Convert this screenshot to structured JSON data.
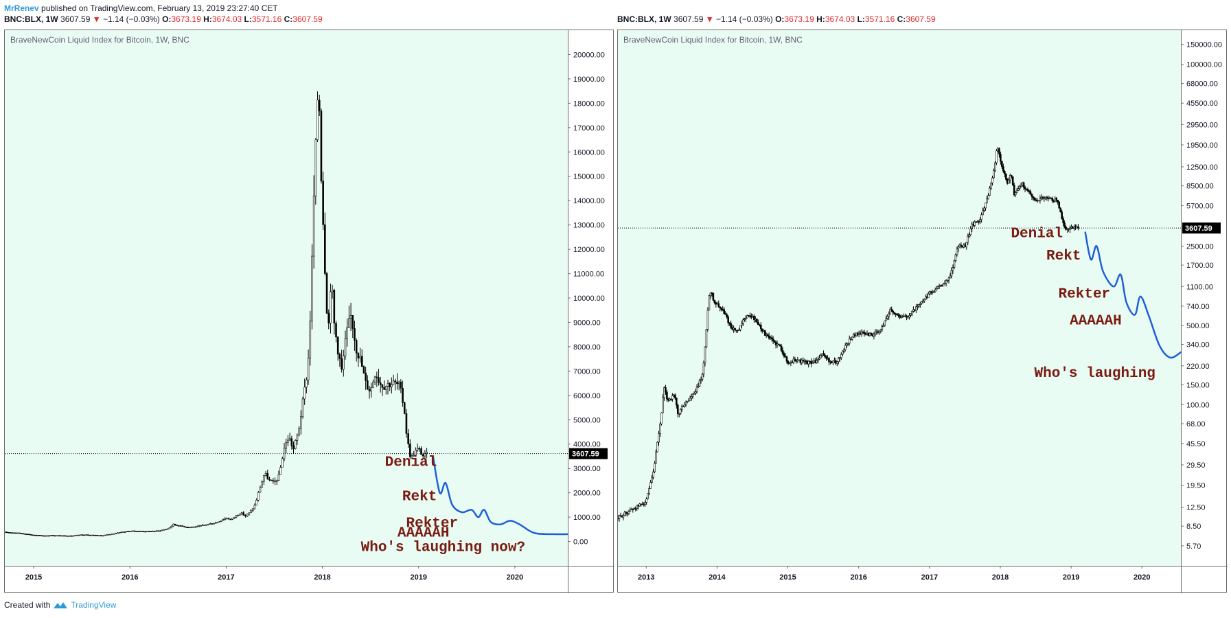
{
  "header": {
    "author": "MrRenev",
    "published": "published on TradingView.com, February 13, 2019 23:27:40 CET"
  },
  "ticker": {
    "symbol": "BNC:BLX, 1W",
    "price": "3607.59",
    "change": "−1.14 (−0.03%)",
    "o_label": "O:",
    "o_value": "3673.19",
    "h_label": "H:",
    "h_value": "3674.03",
    "l_label": "L:",
    "l_value": "3571.16",
    "c_label": "C:",
    "c_value": "3607.59"
  },
  "footer": {
    "created_with": "Created with",
    "brand": "TradingView"
  },
  "colors": {
    "plot_bg": "#e9fcf4",
    "candle": "#000000",
    "projection": "#1f5fd6",
    "annotation": "#7a1a10",
    "price_tag_bg": "#000000"
  },
  "chart_data": [
    {
      "type": "candlestick",
      "title": "BraveNewCoin Liquid Index for Bitcoin, 1W, BNC",
      "scale": "linear",
      "ylim": [
        -1000,
        21000
      ],
      "xlim": [
        2014.7,
        2020.55
      ],
      "y_ticks": [
        0,
        1000,
        2000,
        3000,
        4000,
        5000,
        6000,
        7000,
        8000,
        9000,
        10000,
        11000,
        12000,
        13000,
        14000,
        15000,
        16000,
        17000,
        18000,
        19000,
        20000
      ],
      "y_tick_labels": [
        "0.00",
        "1000.00",
        "2000.00",
        "3000.00",
        "4000.00",
        "5000.00",
        "6000.00",
        "7000.00",
        "8000.00",
        "9000.00",
        "10000.00",
        "11000.00",
        "12000.00",
        "13000.00",
        "14000.00",
        "15000.00",
        "16000.00",
        "17000.00",
        "18000.00",
        "19000.00",
        "20000.00"
      ],
      "x_ticks": [
        2015,
        2016,
        2017,
        2018,
        2019,
        2020
      ],
      "x_tick_labels": [
        "2015",
        "2016",
        "2017",
        "2018",
        "2019",
        "2020"
      ],
      "last_price": 3607.59,
      "last_price_label": "3607.59",
      "price_series": [
        [
          2014.7,
          380
        ],
        [
          2014.8,
          360
        ],
        [
          2014.9,
          320
        ],
        [
          2015.0,
          260
        ],
        [
          2015.1,
          240
        ],
        [
          2015.2,
          250
        ],
        [
          2015.3,
          235
        ],
        [
          2015.4,
          240
        ],
        [
          2015.5,
          280
        ],
        [
          2015.6,
          260
        ],
        [
          2015.7,
          240
        ],
        [
          2015.8,
          300
        ],
        [
          2015.9,
          380
        ],
        [
          2016.0,
          430
        ],
        [
          2016.1,
          420
        ],
        [
          2016.2,
          415
        ],
        [
          2016.3,
          440
        ],
        [
          2016.4,
          530
        ],
        [
          2016.45,
          700
        ],
        [
          2016.5,
          650
        ],
        [
          2016.6,
          590
        ],
        [
          2016.7,
          610
        ],
        [
          2016.8,
          700
        ],
        [
          2016.9,
          780
        ],
        [
          2017.0,
          970
        ],
        [
          2017.05,
          900
        ],
        [
          2017.1,
          1050
        ],
        [
          2017.15,
          1180
        ],
        [
          2017.2,
          1050
        ],
        [
          2017.25,
          1200
        ],
        [
          2017.3,
          1500
        ],
        [
          2017.35,
          2200
        ],
        [
          2017.4,
          2800
        ],
        [
          2017.45,
          2500
        ],
        [
          2017.5,
          2400
        ],
        [
          2017.55,
          2700
        ],
        [
          2017.6,
          3800
        ],
        [
          2017.65,
          4300
        ],
        [
          2017.7,
          3800
        ],
        [
          2017.75,
          4500
        ],
        [
          2017.8,
          5800
        ],
        [
          2017.85,
          7200
        ],
        [
          2017.88,
          9800
        ],
        [
          2017.91,
          14000
        ],
        [
          2017.94,
          17000
        ],
        [
          2017.96,
          19500
        ],
        [
          2017.98,
          16000
        ],
        [
          2018.0,
          14000
        ],
        [
          2018.03,
          11000
        ],
        [
          2018.06,
          8500
        ],
        [
          2018.09,
          11000
        ],
        [
          2018.12,
          9000
        ],
        [
          2018.15,
          8200
        ],
        [
          2018.2,
          7000
        ],
        [
          2018.25,
          8500
        ],
        [
          2018.3,
          9300
        ],
        [
          2018.35,
          8000
        ],
        [
          2018.4,
          7400
        ],
        [
          2018.45,
          6500
        ],
        [
          2018.5,
          6200
        ],
        [
          2018.55,
          7000
        ],
        [
          2018.6,
          6500
        ],
        [
          2018.65,
          6400
        ],
        [
          2018.7,
          6500
        ],
        [
          2018.75,
          6500
        ],
        [
          2018.8,
          6400
        ],
        [
          2018.85,
          5500
        ],
        [
          2018.88,
          4200
        ],
        [
          2018.92,
          3400
        ],
        [
          2018.96,
          3700
        ],
        [
          2019.0,
          3800
        ],
        [
          2019.05,
          3500
        ],
        [
          2019.1,
          3600
        ]
      ],
      "projection": [
        [
          2019.15,
          3500
        ],
        [
          2019.22,
          2000
        ],
        [
          2019.28,
          2400
        ],
        [
          2019.35,
          1500
        ],
        [
          2019.45,
          1200
        ],
        [
          2019.55,
          1300
        ],
        [
          2019.62,
          1000
        ],
        [
          2019.68,
          1300
        ],
        [
          2019.75,
          800
        ],
        [
          2019.85,
          700
        ],
        [
          2019.95,
          850
        ],
        [
          2020.05,
          700
        ],
        [
          2020.2,
          350
        ],
        [
          2020.4,
          300
        ],
        [
          2020.55,
          300
        ]
      ],
      "annotations": [
        {
          "text": "Denial",
          "x": 2018.65,
          "y": 3100
        },
        {
          "text": "Rekt",
          "x": 2018.83,
          "y": 1700
        },
        {
          "text": "Rekter",
          "x": 2018.87,
          "y": 600
        },
        {
          "text": "AAAAAH",
          "x": 2018.78,
          "y": 200
        },
        {
          "text": "Who's laughing now?",
          "x": 2018.4,
          "y": -400
        }
      ]
    },
    {
      "type": "candlestick",
      "title": "BraveNewCoin Liquid Index for Bitcoin, 1W, BNC",
      "scale": "log",
      "ylim": [
        3.8,
        200000
      ],
      "xlim": [
        2012.6,
        2020.55
      ],
      "y_ticks": [
        5.7,
        8.5,
        12.5,
        19.5,
        29.5,
        45.5,
        68,
        100,
        150,
        220,
        340,
        500,
        740,
        1100,
        1700,
        2500,
        5700,
        8500,
        12500,
        19500,
        29500,
        45500,
        68000,
        100000,
        150000
      ],
      "y_tick_labels": [
        "5.70",
        "8.50",
        "12.50",
        "19.50",
        "29.50",
        "45.50",
        "68.00",
        "100.00",
        "150.00",
        "220.00",
        "340.00",
        "500.00",
        "740.00",
        "1100.00",
        "1700.00",
        "2500.00",
        "5700.00",
        "8500.00",
        "12500.00",
        "19500.00",
        "29500.00",
        "45500.00",
        "68000.00",
        "100000.00",
        "150000.00"
      ],
      "x_ticks": [
        2013,
        2014,
        2015,
        2016,
        2017,
        2018,
        2019,
        2020
      ],
      "x_tick_labels": [
        "2013",
        "2014",
        "2015",
        "2016",
        "2017",
        "2018",
        "2019",
        "2020"
      ],
      "last_price": 3607.59,
      "last_price_label": "3607.59",
      "price_series": [
        [
          2012.6,
          10
        ],
        [
          2012.7,
          11
        ],
        [
          2012.8,
          12
        ],
        [
          2012.9,
          13
        ],
        [
          2013.0,
          14
        ],
        [
          2013.1,
          25
        ],
        [
          2013.2,
          70
        ],
        [
          2013.25,
          140
        ],
        [
          2013.3,
          110
        ],
        [
          2013.4,
          120
        ],
        [
          2013.45,
          80
        ],
        [
          2013.5,
          95
        ],
        [
          2013.6,
          110
        ],
        [
          2013.7,
          130
        ],
        [
          2013.8,
          190
        ],
        [
          2013.85,
          450
        ],
        [
          2013.88,
          900
        ],
        [
          2013.92,
          1000
        ],
        [
          2013.96,
          800
        ],
        [
          2014.0,
          780
        ],
        [
          2014.1,
          650
        ],
        [
          2014.2,
          480
        ],
        [
          2014.3,
          440
        ],
        [
          2014.4,
          600
        ],
        [
          2014.5,
          600
        ],
        [
          2014.6,
          500
        ],
        [
          2014.7,
          400
        ],
        [
          2014.8,
          360
        ],
        [
          2014.9,
          320
        ],
        [
          2015.0,
          230
        ],
        [
          2015.1,
          250
        ],
        [
          2015.2,
          240
        ],
        [
          2015.3,
          235
        ],
        [
          2015.4,
          240
        ],
        [
          2015.5,
          280
        ],
        [
          2015.6,
          235
        ],
        [
          2015.7,
          240
        ],
        [
          2015.8,
          320
        ],
        [
          2015.9,
          400
        ],
        [
          2016.0,
          430
        ],
        [
          2016.1,
          420
        ],
        [
          2016.2,
          415
        ],
        [
          2016.3,
          440
        ],
        [
          2016.45,
          700
        ],
        [
          2016.5,
          650
        ],
        [
          2016.6,
          590
        ],
        [
          2016.7,
          610
        ],
        [
          2016.8,
          700
        ],
        [
          2016.9,
          800
        ],
        [
          2017.0,
          960
        ],
        [
          2017.1,
          1050
        ],
        [
          2017.2,
          1150
        ],
        [
          2017.3,
          1400
        ],
        [
          2017.4,
          2500
        ],
        [
          2017.5,
          2500
        ],
        [
          2017.6,
          3800
        ],
        [
          2017.7,
          4200
        ],
        [
          2017.8,
          6000
        ],
        [
          2017.9,
          11000
        ],
        [
          2017.96,
          19000
        ],
        [
          2018.0,
          14000
        ],
        [
          2018.1,
          9000
        ],
        [
          2018.15,
          11000
        ],
        [
          2018.2,
          7000
        ],
        [
          2018.3,
          9000
        ],
        [
          2018.4,
          7500
        ],
        [
          2018.5,
          6300
        ],
        [
          2018.6,
          6800
        ],
        [
          2018.7,
          6500
        ],
        [
          2018.8,
          6400
        ],
        [
          2018.88,
          4200
        ],
        [
          2018.93,
          3400
        ],
        [
          2019.0,
          3700
        ],
        [
          2019.1,
          3600
        ]
      ],
      "projection": [
        [
          2019.2,
          3300
        ],
        [
          2019.28,
          1900
        ],
        [
          2019.36,
          2500
        ],
        [
          2019.45,
          1500
        ],
        [
          2019.6,
          1100
        ],
        [
          2019.7,
          1400
        ],
        [
          2019.78,
          800
        ],
        [
          2019.9,
          620
        ],
        [
          2019.98,
          900
        ],
        [
          2020.1,
          600
        ],
        [
          2020.25,
          330
        ],
        [
          2020.4,
          260
        ],
        [
          2020.55,
          290
        ]
      ],
      "annotations": [
        {
          "text": "Denial",
          "x": 2018.15,
          "y": 3000
        },
        {
          "text": "Rekt",
          "x": 2018.65,
          "y": 1900
        },
        {
          "text": "Rekter",
          "x": 2018.82,
          "y": 880
        },
        {
          "text": "AAAAAH",
          "x": 2018.98,
          "y": 510
        },
        {
          "text": "Who's laughing",
          "x": 2018.48,
          "y": 175
        }
      ]
    }
  ]
}
